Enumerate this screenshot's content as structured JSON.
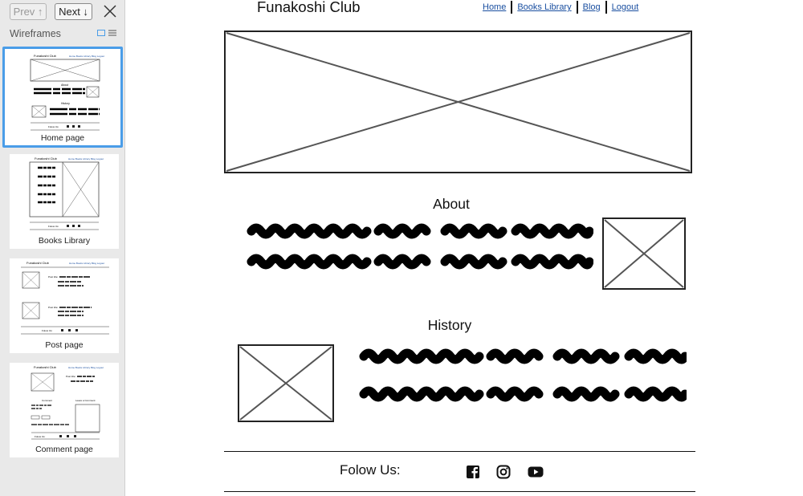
{
  "sidebar": {
    "prev_label": "Prev ↑",
    "next_label": "Next ↓",
    "heading": "Wireframes",
    "items": [
      {
        "label": "Home page"
      },
      {
        "label": "Books Library"
      },
      {
        "label": "Post page"
      },
      {
        "label": "Comment page"
      }
    ],
    "selected_index": 0
  },
  "page": {
    "site_title": "Funakoshi Club",
    "nav": {
      "home": "Home",
      "books": "Books Library",
      "blog": "Blog",
      "logout": "Logout"
    },
    "about_heading": "About",
    "history_heading": "History",
    "follow_label": "Folow Us:",
    "social_icons": [
      "facebook-icon",
      "instagram-icon",
      "youtube-icon"
    ]
  },
  "colors": {
    "accent": "#4a9de8",
    "link": "#1a4fa0",
    "sidebar_bg": "#e9e9e9"
  }
}
